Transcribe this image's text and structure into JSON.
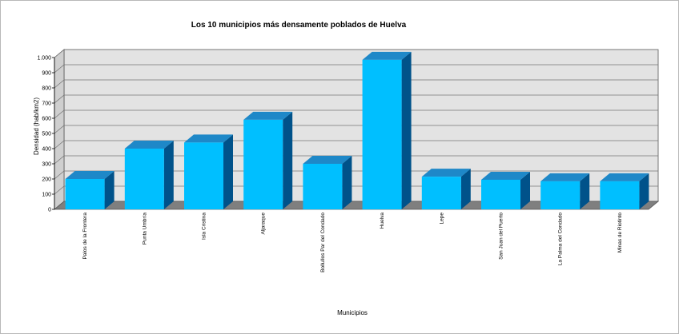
{
  "chart_data": {
    "type": "bar",
    "title": "Los 10 municipios más densamente poblados de Huelva",
    "xlabel": "Municipios",
    "ylabel": "Densidad (hab/km2)",
    "ylim": [
      0,
      1000
    ],
    "yticks": [
      0,
      100,
      200,
      300,
      400,
      500,
      600,
      700,
      800,
      900,
      1000
    ],
    "ytick_labels": [
      "0",
      "100",
      "200",
      "300",
      "400",
      "500",
      "600",
      "700",
      "800",
      "900",
      "1.000"
    ],
    "grid": true,
    "categories": [
      "Palos de la Frontera",
      "Punta Umbría",
      "Isla Cristina",
      "Aljaraque",
      "Bollullos Par del Condado",
      "Huelva",
      "Lepe",
      "San Juan del Puerto",
      "La Palma del Condado",
      "Minas de Riotinto"
    ],
    "values": [
      200,
      400,
      440,
      590,
      300,
      985,
      215,
      195,
      185,
      185
    ],
    "colors": {
      "bar_front": "#00bfff",
      "bar_top": "#1e88c8",
      "bar_side": "#00528a",
      "wall": "#e3e3e3",
      "floor": "#7f7f7f",
      "grid": "#777777"
    }
  }
}
